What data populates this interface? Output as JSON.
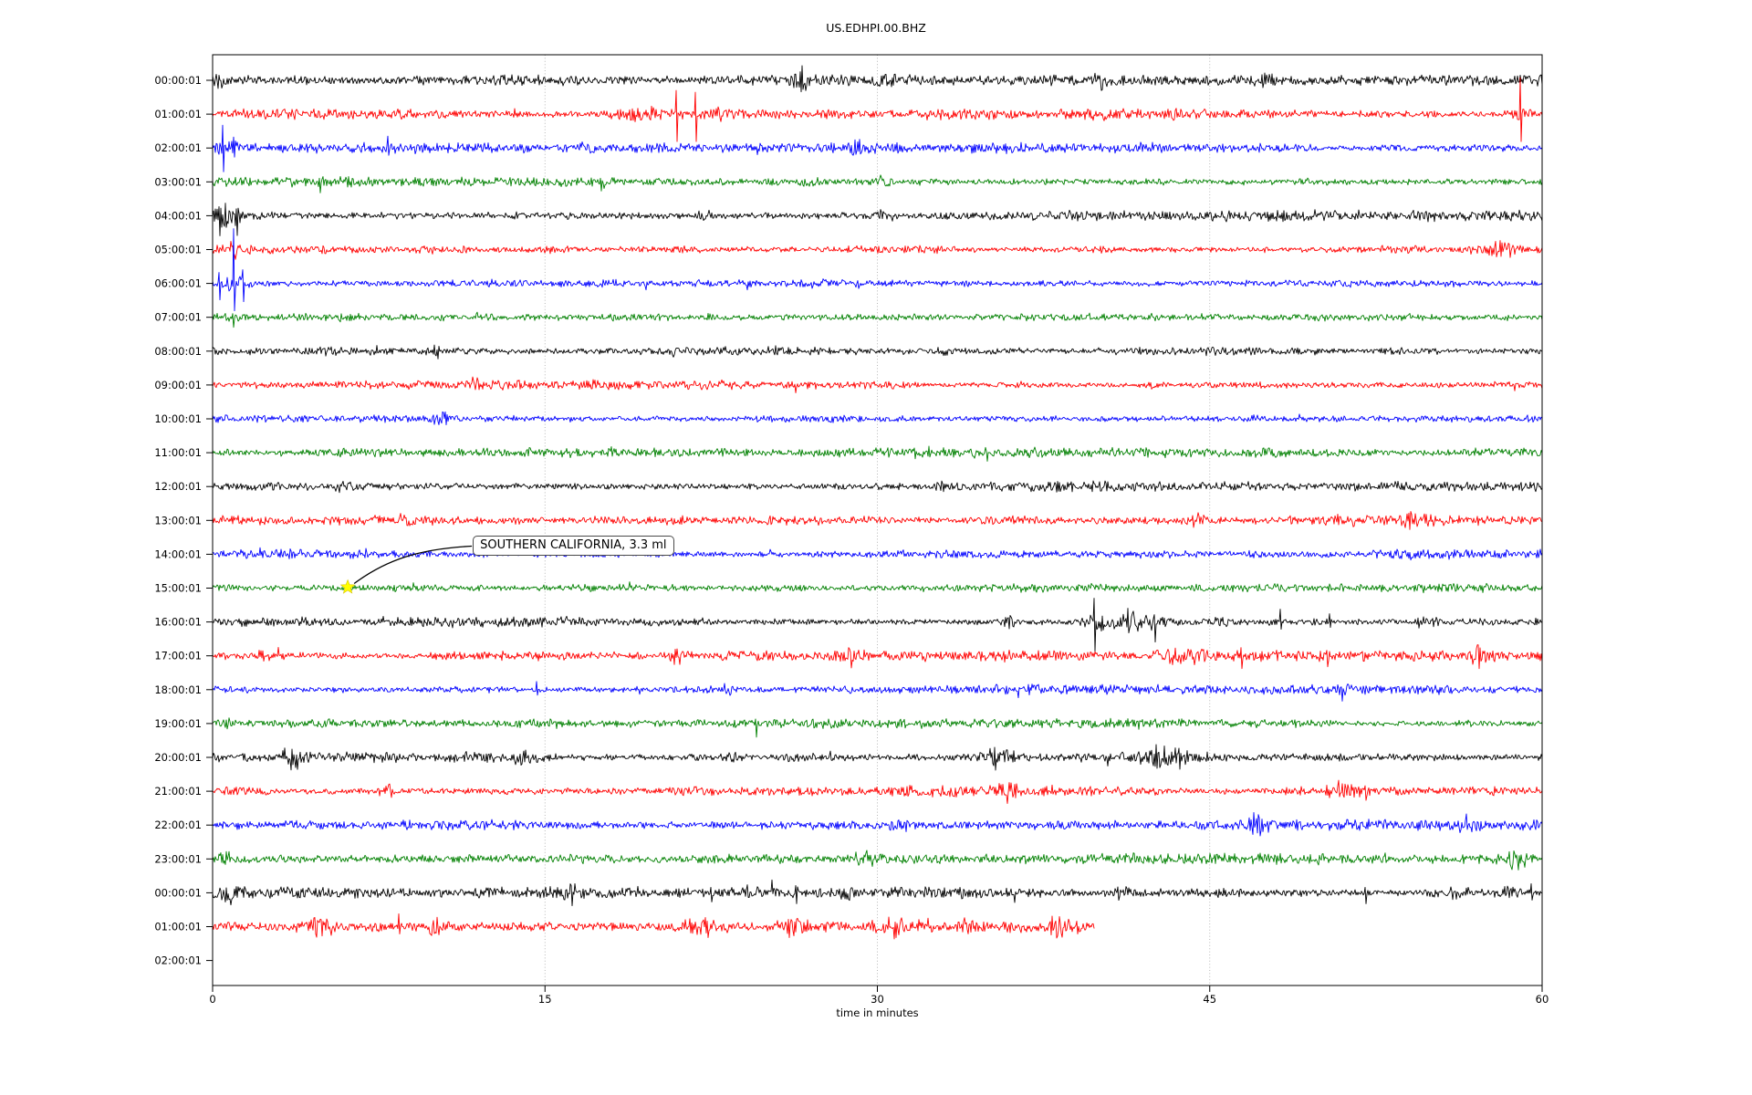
{
  "window": {
    "background": "#ffffff"
  },
  "chart_data": {
    "type": "line",
    "title": "US.EDHPI.00.BHZ",
    "xlabel": "time in minutes",
    "xlim": [
      0,
      60
    ],
    "x_ticks": [
      0,
      15,
      30,
      45,
      60
    ],
    "grid_x": [
      15,
      30,
      45
    ],
    "grid_color": "#b0b0b0",
    "legend": "none",
    "colors": {
      "black": "#000000",
      "red": "#ff0000",
      "blue": "#0000ff",
      "green": "#008000"
    },
    "annotation": {
      "text": "SOUTHERN CALIFORNIA, 3.3 ml",
      "row": 15,
      "t_min": 6.1,
      "marker": "star-marker",
      "marker_color": "#ffff00"
    },
    "rows": [
      {
        "label": "00:00:01",
        "color": "black",
        "noise": 4.4,
        "bursts": [
          [
            0.3,
            1.4,
            0.3
          ],
          [
            26.6,
            1.8,
            0.35
          ],
          [
            30.4,
            1.1,
            0.3
          ],
          [
            40.1,
            1.2,
            0.3
          ],
          [
            47.6,
            1.2,
            0.3
          ]
        ],
        "spikes": [
          [
            26.6,
            16,
            10
          ]
        ]
      },
      {
        "label": "01:00:01",
        "color": "red",
        "noise": 4.5,
        "bursts": [
          [
            8.5,
            1.2,
            0.3
          ],
          [
            19.5,
            1.8,
            1.2
          ],
          [
            23.0,
            1.3,
            0.8
          ],
          [
            59.0,
            1.5,
            0.5
          ]
        ],
        "spikes": [
          [
            20.9,
            26,
            30
          ],
          [
            21.8,
            24,
            30
          ],
          [
            59.0,
            40,
            30
          ]
        ]
      },
      {
        "label": "02:00:01",
        "color": "blue",
        "noise": 4.2,
        "bursts": [
          [
            0.7,
            1.6,
            0.5
          ],
          [
            29.0,
            1.4,
            0.4
          ]
        ],
        "spikes": [
          [
            0.45,
            25,
            26
          ],
          [
            0.95,
            12,
            10
          ],
          [
            7.9,
            13,
            8
          ],
          [
            29.0,
            9,
            7
          ]
        ]
      },
      {
        "label": "03:00:01",
        "color": "green",
        "noise": 4.2,
        "bursts": [
          [
            30.3,
            1.3,
            0.3
          ]
        ],
        "spikes": [
          [
            4.8,
            4,
            12
          ],
          [
            17.5,
            4,
            10
          ]
        ]
      },
      {
        "label": "04:00:01",
        "color": "black",
        "noise": 4.4,
        "bursts": [
          [
            0.6,
            1.8,
            0.8
          ],
          [
            22.0,
            1.15,
            0.3
          ],
          [
            30.0,
            1.2,
            0.3
          ]
        ],
        "spikes": [
          [
            0.3,
            10,
            22
          ]
        ]
      },
      {
        "label": "05:00:01",
        "color": "red",
        "noise": 4.2,
        "bursts": [
          [
            0.9,
            1.2,
            0.4
          ],
          [
            58.3,
            1.7,
            0.7
          ]
        ],
        "spikes": [
          [
            57.9,
            9,
            8
          ]
        ]
      },
      {
        "label": "06:00:01",
        "color": "blue",
        "noise": 4.2,
        "bursts": [
          [
            1.1,
            1.8,
            0.5
          ]
        ],
        "spikes": [
          [
            0.3,
            12,
            18
          ],
          [
            0.95,
            60,
            30
          ],
          [
            1.35,
            15,
            20
          ]
        ]
      },
      {
        "label": "07:00:01",
        "color": "green",
        "noise": 4.1,
        "bursts": [],
        "spikes": [
          [
            0.9,
            4,
            11
          ]
        ]
      },
      {
        "label": "08:00:01",
        "color": "black",
        "noise": 4.1,
        "bursts": [
          [
            10.0,
            1.1,
            0.3
          ],
          [
            33.0,
            1.1,
            0.3
          ]
        ],
        "spikes": []
      },
      {
        "label": "09:00:01",
        "color": "red",
        "noise": 4.0,
        "bursts": [
          [
            11.9,
            1.15,
            0.3
          ],
          [
            42.6,
            1.1,
            0.3
          ]
        ],
        "spikes": []
      },
      {
        "label": "10:00:01",
        "color": "blue",
        "noise": 4.0,
        "bursts": [
          [
            10.3,
            1.2,
            0.3
          ],
          [
            47.0,
            1.1,
            0.2
          ]
        ],
        "spikes": []
      },
      {
        "label": "11:00:01",
        "color": "green",
        "noise": 4.0,
        "bursts": [
          [
            18.0,
            1.15,
            0.3
          ]
        ],
        "spikes": []
      },
      {
        "label": "12:00:01",
        "color": "black",
        "noise": 4.2,
        "bursts": [
          [
            5.8,
            1.1,
            0.3
          ],
          [
            32.9,
            1.2,
            0.3
          ]
        ],
        "spikes": []
      },
      {
        "label": "13:00:01",
        "color": "red",
        "noise": 4.4,
        "bursts": [
          [
            8.8,
            1.1,
            0.3
          ],
          [
            44.5,
            1.2,
            0.4
          ],
          [
            54.1,
            2.0,
            0.5
          ]
        ],
        "spikes": [
          [
            54.0,
            8,
            10
          ]
        ]
      },
      {
        "label": "14:00:01",
        "color": "blue",
        "noise": 4.0,
        "bursts": [
          [
            25.0,
            1.1,
            0.3
          ]
        ],
        "spikes": []
      },
      {
        "label": "15:00:01",
        "color": "green",
        "noise": 4.0,
        "bursts": [],
        "spikes": []
      },
      {
        "label": "16:00:01",
        "color": "black",
        "noise": 4.2,
        "bursts": [
          [
            35.9,
            1.3,
            0.3
          ],
          [
            40.0,
            1.6,
            0.5
          ],
          [
            41.5,
            2.2,
            1.2
          ],
          [
            45.5,
            1.2,
            0.3
          ],
          [
            54.8,
            1.5,
            0.6
          ]
        ],
        "spikes": [
          [
            39.8,
            26,
            32
          ],
          [
            41.3,
            15,
            12
          ],
          [
            42.5,
            8,
            22
          ],
          [
            48.2,
            14,
            8
          ],
          [
            50.4,
            9,
            6
          ]
        ]
      },
      {
        "label": "17:00:01",
        "color": "red",
        "noise": 4.3,
        "bursts": [
          [
            2.5,
            1.3,
            0.6
          ],
          [
            21.0,
            1.3,
            0.4
          ],
          [
            28.8,
            1.4,
            0.4
          ],
          [
            43.8,
            1.5,
            1.0
          ],
          [
            57.1,
            1.3,
            0.3
          ]
        ],
        "spikes": [
          [
            46.4,
            9,
            14
          ],
          [
            50.3,
            6,
            12
          ],
          [
            57.1,
            12,
            14
          ]
        ]
      },
      {
        "label": "18:00:01",
        "color": "blue",
        "noise": 4.0,
        "bursts": [
          [
            23.2,
            1.2,
            0.3
          ],
          [
            51.0,
            1.1,
            0.2
          ]
        ],
        "spikes": [
          [
            14.6,
            9,
            6
          ]
        ]
      },
      {
        "label": "19:00:01",
        "color": "green",
        "noise": 4.0,
        "bursts": [
          [
            0.5,
            1.2,
            0.3
          ]
        ],
        "spikes": [
          [
            24.5,
            5,
            15
          ]
        ]
      },
      {
        "label": "20:00:01",
        "color": "black",
        "noise": 4.3,
        "bursts": [
          [
            3.6,
            1.5,
            0.4
          ],
          [
            14.0,
            1.2,
            0.3
          ],
          [
            23.5,
            1.2,
            0.3
          ],
          [
            35.4,
            2.0,
            0.7
          ],
          [
            42.8,
            2.0,
            1.0
          ]
        ],
        "spikes": [
          [
            3.6,
            9,
            8
          ],
          [
            35.3,
            11,
            14
          ],
          [
            42.6,
            14,
            12
          ],
          [
            43.6,
            10,
            13
          ]
        ]
      },
      {
        "label": "21:00:01",
        "color": "red",
        "noise": 4.4,
        "bursts": [
          [
            8.0,
            1.3,
            0.4
          ],
          [
            35.8,
            1.3,
            0.5
          ],
          [
            51.0,
            1.5,
            0.8
          ]
        ],
        "spikes": [
          [
            50.8,
            12,
            6
          ],
          [
            52.0,
            6,
            10
          ]
        ]
      },
      {
        "label": "22:00:01",
        "color": "blue",
        "noise": 4.2,
        "bursts": [
          [
            31.0,
            1.2,
            0.4
          ],
          [
            46.9,
            1.6,
            0.6
          ],
          [
            56.5,
            1.2,
            0.3
          ]
        ],
        "spikes": [
          [
            46.8,
            8,
            6
          ],
          [
            47.6,
            4,
            8
          ]
        ]
      },
      {
        "label": "23:00:01",
        "color": "green",
        "noise": 4.6,
        "bursts": [
          [
            0.5,
            1.3,
            0.4
          ],
          [
            29.5,
            1.3,
            0.6
          ],
          [
            58.8,
            1.6,
            0.6
          ]
        ],
        "spikes": [
          [
            58.5,
            8,
            6
          ]
        ]
      },
      {
        "label": "00:00:01",
        "color": "black",
        "noise": 4.6,
        "bursts": [
          [
            0.7,
            1.5,
            0.5
          ],
          [
            16.2,
            1.2,
            0.3
          ],
          [
            28.5,
            1.2,
            0.3
          ],
          [
            41.0,
            1.2,
            0.3
          ],
          [
            55.9,
            1.4,
            0.8
          ],
          [
            58.5,
            1.4,
            0.6
          ]
        ],
        "spikes": [
          [
            22.5,
            6,
            10
          ],
          [
            26.3,
            8,
            12
          ],
          [
            52.0,
            6,
            12
          ],
          [
            59.5,
            10,
            8
          ]
        ]
      },
      {
        "label": "01:00:01",
        "color": "red",
        "noise": 4.6,
        "end_min": 39.8,
        "bursts": [
          [
            4.8,
            1.5,
            0.7
          ],
          [
            10.0,
            1.3,
            0.4
          ],
          [
            21.8,
            1.4,
            0.8
          ],
          [
            26.2,
            1.5,
            0.5
          ],
          [
            30.6,
            1.4,
            0.5
          ],
          [
            34.0,
            1.2,
            0.4
          ],
          [
            38.0,
            1.2,
            0.5
          ]
        ],
        "spikes": [
          [
            4.6,
            10,
            8
          ],
          [
            8.4,
            14,
            8
          ],
          [
            22.3,
            6,
            12
          ],
          [
            26.0,
            8,
            12
          ],
          [
            30.8,
            5,
            12
          ],
          [
            39.0,
            6,
            8
          ]
        ]
      },
      {
        "label": "02:00:01",
        "color": "black",
        "noise": 0,
        "empty": true,
        "bursts": [],
        "spikes": []
      }
    ]
  }
}
